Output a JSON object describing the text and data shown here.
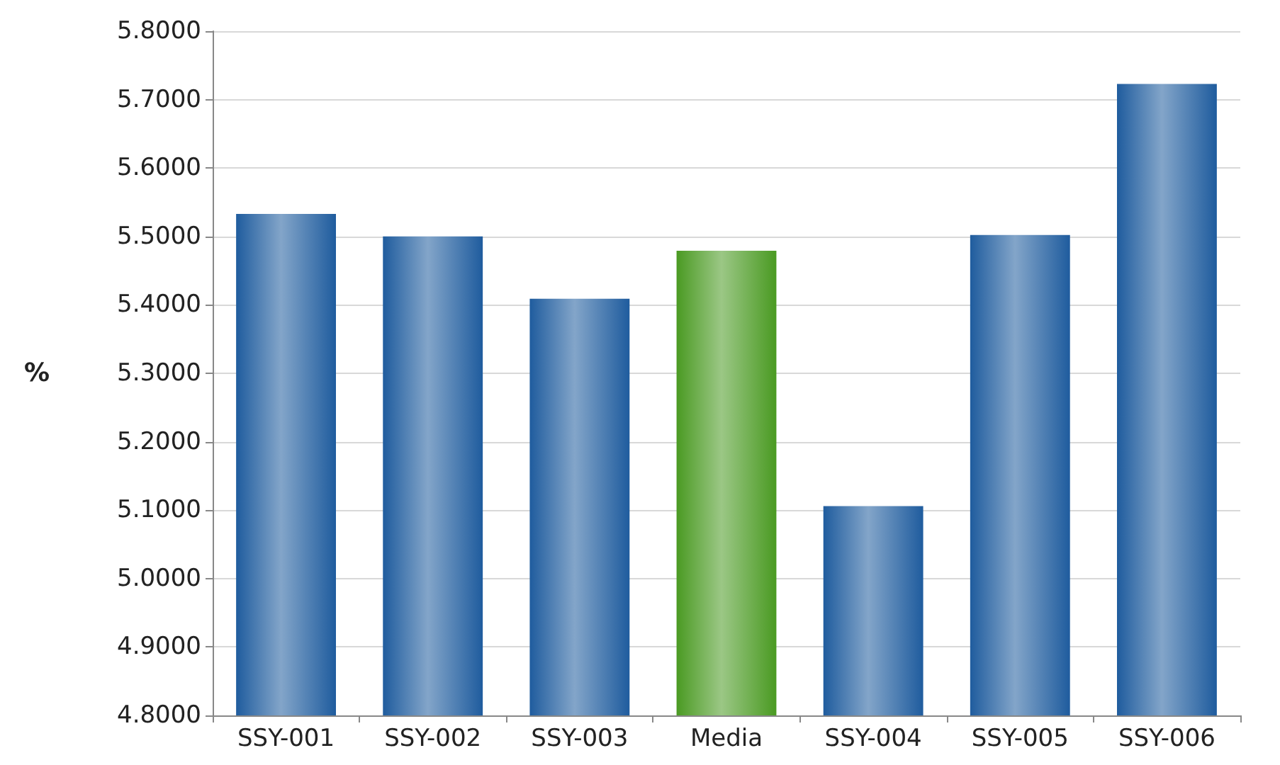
{
  "chart_data": {
    "type": "bar",
    "ylabel": "%",
    "categories": [
      "SSY-001",
      "SSY-002",
      "SSY-003",
      "Media",
      "SSY-004",
      "SSY-005",
      "SSY-006"
    ],
    "values": [
      5.533,
      5.5,
      5.409,
      5.479,
      5.106,
      5.502,
      5.723
    ],
    "colors": [
      "#1f5c9e",
      "#1f5c9e",
      "#1f5c9e",
      "#4a9a22",
      "#1f5c9e",
      "#1f5c9e",
      "#1f5c9e"
    ],
    "ylim": [
      4.8,
      5.8
    ],
    "yticks": [
      {
        "value": 4.8,
        "label": "4.8000"
      },
      {
        "value": 4.9,
        "label": "4.9000"
      },
      {
        "value": 5.0,
        "label": "5.0000"
      },
      {
        "value": 5.1,
        "label": "5.1000"
      },
      {
        "value": 5.2,
        "label": "5.2000"
      },
      {
        "value": 5.3,
        "label": "5.3000"
      },
      {
        "value": 5.4,
        "label": "5.4000"
      },
      {
        "value": 5.5,
        "label": "5.5000"
      },
      {
        "value": 5.6,
        "label": "5.6000"
      },
      {
        "value": 5.7,
        "label": "5.7000"
      },
      {
        "value": 5.8,
        "label": "5.8000"
      }
    ],
    "grid": "y"
  }
}
